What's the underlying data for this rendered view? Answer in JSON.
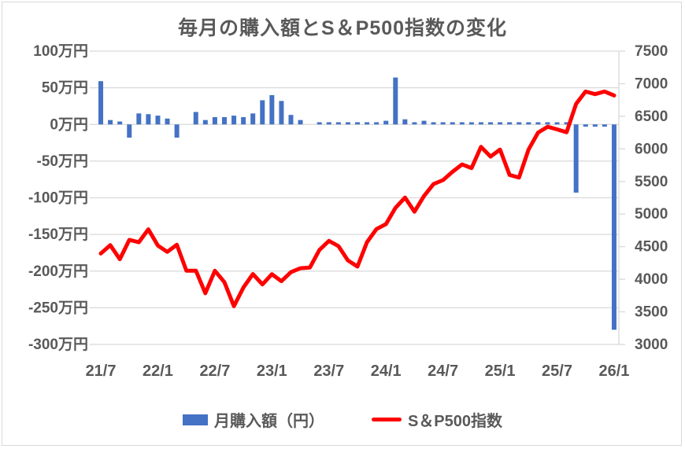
{
  "chart_data": {
    "type": "combo-bar-line",
    "title": "毎月の購入額とS＆P500指数の変化",
    "categories": [
      "21/7",
      "21/8",
      "21/9",
      "21/10",
      "21/11",
      "21/12",
      "22/1",
      "22/2",
      "22/3",
      "22/4",
      "22/5",
      "22/6",
      "22/7",
      "22/8",
      "22/9",
      "22/10",
      "22/11",
      "22/12",
      "23/1",
      "23/2",
      "23/3",
      "23/4",
      "23/5",
      "23/6",
      "23/7",
      "23/8",
      "23/9",
      "23/10",
      "23/11",
      "23/12",
      "24/1",
      "24/2",
      "24/3",
      "24/4",
      "24/5",
      "24/6",
      "24/7",
      "24/8",
      "24/9",
      "24/10",
      "24/11",
      "24/12",
      "25/1",
      "25/2",
      "25/3",
      "25/4",
      "25/5",
      "25/6",
      "25/7",
      "25/8",
      "25/9",
      "25/10",
      "25/11",
      "25/12",
      "26/1"
    ],
    "series": [
      {
        "name": "月購入額（円）",
        "type": "bar",
        "axis": "left",
        "unit": "万円",
        "color": "#4472C4",
        "values": [
          59,
          6,
          4,
          -18,
          15,
          14,
          12,
          8,
          -18,
          0,
          17,
          6,
          10,
          10,
          12,
          10,
          15,
          33,
          40,
          32,
          13,
          6,
          0,
          3,
          3,
          3,
          3,
          3,
          3,
          3,
          5,
          64,
          7,
          3,
          5,
          3,
          3,
          3,
          3,
          3,
          3,
          3,
          3,
          3,
          3,
          3,
          3,
          3,
          3,
          3,
          -93,
          -3,
          -3,
          -3,
          -280
        ]
      },
      {
        "name": "S＆P500指数",
        "type": "line",
        "axis": "right",
        "color": "#FF0000",
        "values": [
          4395,
          4523,
          4308,
          4605,
          4567,
          4766,
          4516,
          4420,
          4530,
          4132,
          4132,
          3785,
          4130,
          3955,
          3586,
          3872,
          4080,
          3920,
          4077,
          3970,
          4109,
          4169,
          4180,
          4450,
          4589,
          4508,
          4288,
          4194,
          4568,
          4770,
          4846,
          5096,
          5254,
          5036,
          5277,
          5460,
          5522,
          5648,
          5762,
          5705,
          6032,
          5882,
          5990,
          5600,
          5560,
          5990,
          6250,
          6340,
          6300,
          6255,
          6690,
          6880,
          6840,
          6880,
          6820
        ]
      }
    ],
    "left_axis": {
      "labels": [
        "100万円",
        "50万円",
        "0万円",
        "-50万円",
        "-100万円",
        "-150万円",
        "-200万円",
        "-250万円",
        "-300万円"
      ],
      "max": 100,
      "min": -300,
      "step": 50
    },
    "right_axis": {
      "labels": [
        "7500",
        "7000",
        "6500",
        "6000",
        "5500",
        "5000",
        "4500",
        "4000",
        "3500",
        "3000"
      ],
      "max": 7500,
      "min": 3000,
      "step": 500
    },
    "x_ticks": {
      "labels": [
        "21/7",
        "22/1",
        "22/7",
        "23/1",
        "23/7",
        "24/1",
        "24/7",
        "25/1",
        "25/7",
        "26/1"
      ],
      "every": 6
    },
    "grid": "horizontal",
    "legend_position": "bottom",
    "colors": {
      "bar": "#4472C4",
      "line": "#FF0000",
      "grid": "#D9D9D9",
      "text": "#595959",
      "background": "#FFFFFF",
      "border": "#D9D9D9"
    }
  }
}
